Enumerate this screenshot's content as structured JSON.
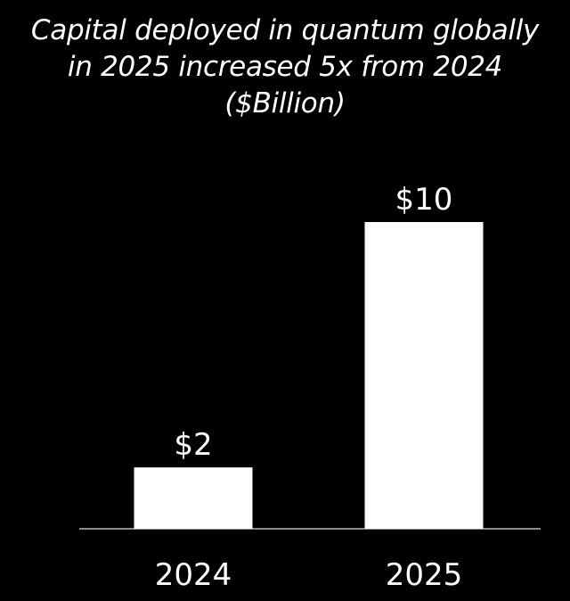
{
  "title": {
    "line1": "Capital deployed in quantum globally",
    "line2": "in 2025 increased 5x from 2024",
    "line3": "($Billion)"
  },
  "colors": {
    "background": "#000000",
    "bar": "#ffffff",
    "text": "#ffffff",
    "axis": "#bbbbbb"
  },
  "chart_data": {
    "type": "bar",
    "title": "Capital deployed in quantum globally in 2025 increased 5x from 2024 ($Billion)",
    "categories": [
      "2024",
      "2025"
    ],
    "values": [
      2,
      10
    ],
    "data_labels": [
      "$2",
      "$10"
    ],
    "xlabel": "",
    "ylabel": "",
    "ylim": [
      0,
      10
    ],
    "grid": false,
    "legend": "none"
  }
}
